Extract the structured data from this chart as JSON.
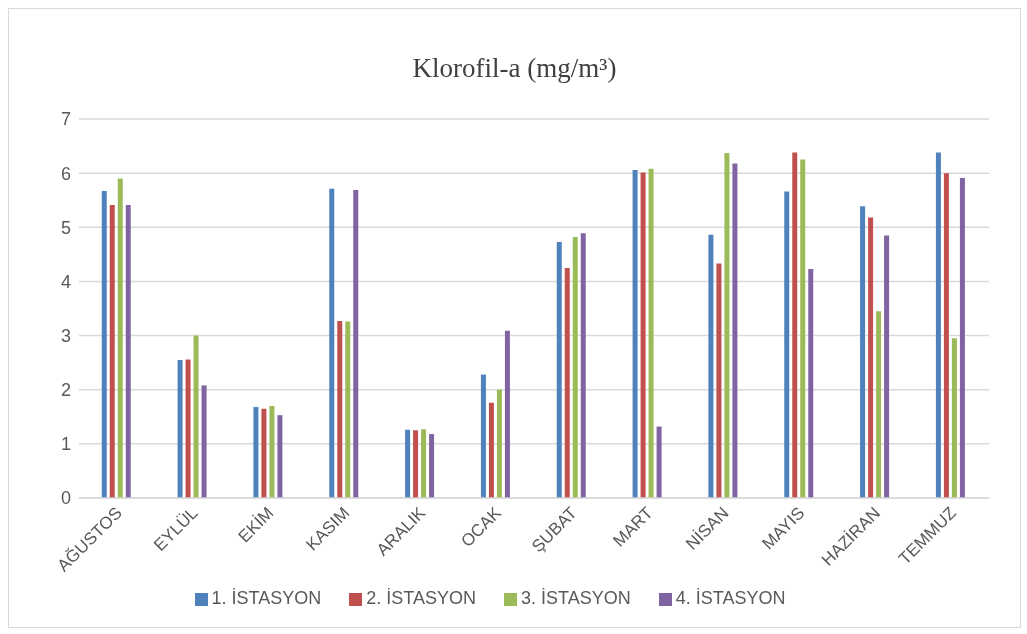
{
  "chart_data": {
    "type": "bar",
    "title": "Klorofil-a (mg/m³)",
    "categories": [
      "AĞUSTOS",
      "EYLÜL",
      "EKİM",
      "KASIM",
      "ARALIK",
      "OCAK",
      "ŞUBAT",
      "MART",
      "NİSAN",
      "MAYIS",
      "HAZİRAN",
      "TEMMUZ"
    ],
    "series": [
      {
        "name": "1. İSTASYON",
        "color": "#4f81bd",
        "values": [
          5.67,
          2.55,
          1.68,
          5.71,
          1.26,
          2.28,
          4.73,
          6.06,
          4.86,
          5.66,
          5.39,
          6.38
        ]
      },
      {
        "name": "2. İSTASYON",
        "color": "#c0504d",
        "values": [
          5.41,
          2.56,
          1.65,
          3.27,
          1.25,
          1.76,
          4.25,
          6.01,
          4.33,
          6.38,
          5.18,
          6.0
        ]
      },
      {
        "name": "3. İSTASYON",
        "color": "#9bbb59",
        "values": [
          5.9,
          3.0,
          1.7,
          3.26,
          1.27,
          2.0,
          4.82,
          6.08,
          6.37,
          6.25,
          3.45,
          2.95
        ]
      },
      {
        "name": "4. İSTASYON",
        "color": "#8064a2",
        "values": [
          5.41,
          2.08,
          1.53,
          5.69,
          1.18,
          3.09,
          4.89,
          1.32,
          6.18,
          4.23,
          4.85,
          5.91
        ]
      }
    ],
    "ylim": [
      0,
      7
    ],
    "yticks": [
      0,
      1,
      2,
      3,
      4,
      5,
      6,
      7
    ],
    "grid": "y",
    "legend": "bottom"
  }
}
